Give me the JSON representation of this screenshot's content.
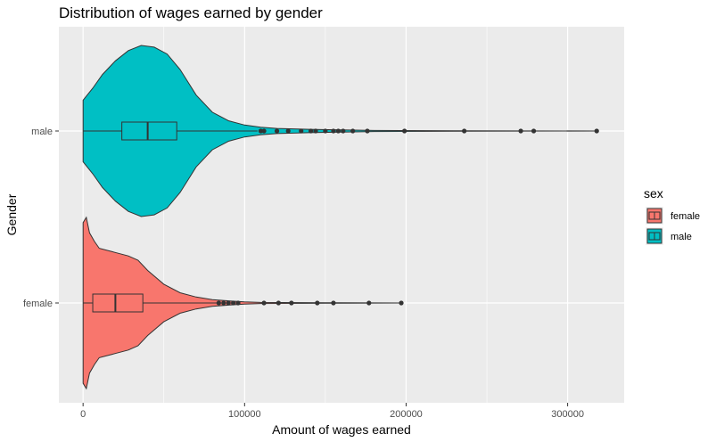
{
  "chart_data": {
    "type": "violin",
    "title": "Distribution of wages earned by gender",
    "xlabel": "Amount of wages earned",
    "ylabel": "Gender",
    "x_ticks": [
      "0",
      "100000",
      "200000",
      "300000"
    ],
    "x_tick_values": [
      0,
      100000,
      200000,
      300000
    ],
    "xlim": [
      -15000,
      335000
    ],
    "categories": [
      "female",
      "male"
    ],
    "grid": true,
    "legend": {
      "title": "sex",
      "position": "right",
      "entries": [
        "female",
        "male"
      ]
    },
    "colors": {
      "female": "#F8766D",
      "male": "#00BFC4",
      "panel": "#EBEBEB",
      "grid": "#FFFFFF",
      "outline": "#333333"
    },
    "series": [
      {
        "name": "female",
        "box": {
          "q1": 6000,
          "median": 20000,
          "q3": 37000,
          "whisker_low": 0,
          "whisker_high": 83000
        },
        "density_profile": [
          [
            0,
            0.94
          ],
          [
            2000,
            1.0
          ],
          [
            4000,
            0.82
          ],
          [
            7000,
            0.72
          ],
          [
            10000,
            0.64
          ],
          [
            14000,
            0.62
          ],
          [
            18000,
            0.6
          ],
          [
            22000,
            0.58
          ],
          [
            28000,
            0.55
          ],
          [
            34000,
            0.5
          ],
          [
            40000,
            0.38
          ],
          [
            50000,
            0.22
          ],
          [
            60000,
            0.12
          ],
          [
            70000,
            0.07
          ],
          [
            80000,
            0.04
          ],
          [
            90000,
            0.025
          ],
          [
            100000,
            0.012
          ],
          [
            110000,
            0.006
          ],
          [
            150000,
            0.003
          ],
          [
            197000,
            0.0
          ]
        ],
        "outliers": [
          84000,
          87000,
          90000,
          93000,
          96000,
          112000,
          121000,
          129000,
          145000,
          155000,
          177000,
          197000
        ]
      },
      {
        "name": "male",
        "box": {
          "q1": 24000,
          "median": 40000,
          "q3": 58000,
          "whisker_low": 0,
          "whisker_high": 108000
        },
        "density_profile": [
          [
            0,
            0.36
          ],
          [
            6000,
            0.5
          ],
          [
            12000,
            0.66
          ],
          [
            20000,
            0.82
          ],
          [
            28000,
            0.94
          ],
          [
            36000,
            1.0
          ],
          [
            44000,
            0.98
          ],
          [
            52000,
            0.9
          ],
          [
            60000,
            0.72
          ],
          [
            70000,
            0.42
          ],
          [
            80000,
            0.22
          ],
          [
            90000,
            0.12
          ],
          [
            100000,
            0.07
          ],
          [
            110000,
            0.045
          ],
          [
            120000,
            0.03
          ],
          [
            140000,
            0.02
          ],
          [
            160000,
            0.012
          ],
          [
            180000,
            0.006
          ],
          [
            230000,
            0.003
          ],
          [
            318000,
            0.0
          ]
        ],
        "outliers": [
          110000,
          112000,
          120000,
          127000,
          135000,
          141000,
          144000,
          150000,
          155000,
          158000,
          161000,
          167000,
          176000,
          199000,
          236000,
          271000,
          279000,
          318000
        ]
      }
    ]
  }
}
